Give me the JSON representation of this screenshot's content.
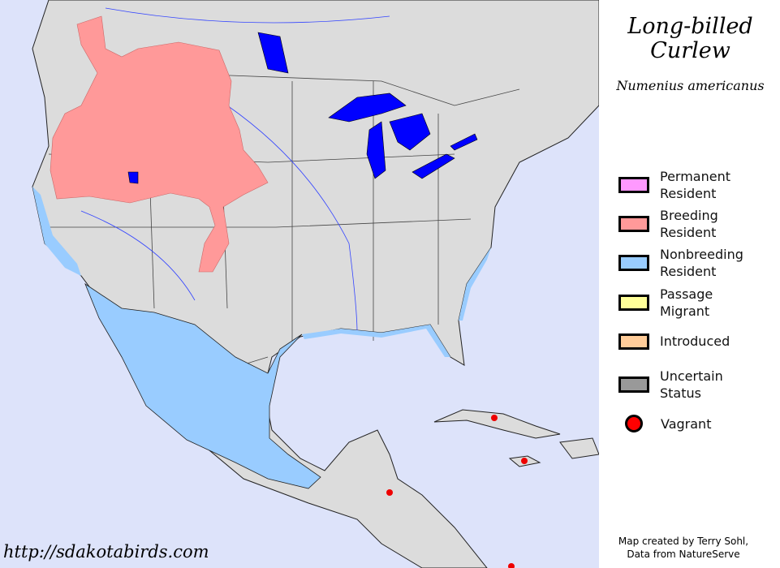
{
  "title": {
    "line1": "Long-billed",
    "line2": "Curlew",
    "scientific": "Numenius americanus"
  },
  "legend": [
    {
      "label1": "Permanent",
      "label2": "Resident",
      "color": "#ff99ff"
    },
    {
      "label1": "Breeding",
      "label2": "Resident",
      "color": "#ff9999"
    },
    {
      "label1": "Nonbreeding",
      "label2": "Resident",
      "color": "#99ccff"
    },
    {
      "label1": "Passage",
      "label2": "Migrant",
      "color": "#ffff99"
    },
    {
      "label1": "Introduced",
      "label2": "",
      "color": "#ffcc99"
    },
    {
      "label1": "Uncertain",
      "label2": "Status",
      "color": "#999999"
    },
    {
      "label1": "Vagrant",
      "label2": "",
      "color": "#ff0000"
    }
  ],
  "credit": {
    "line1": "Map created by Terry Sohl,",
    "line2": "Data from NatureServe"
  },
  "url": "http://sdakotabirds.com",
  "colors": {
    "ocean": "#dde3fa",
    "land": "#dcdcdc",
    "water": "#0000ff"
  }
}
